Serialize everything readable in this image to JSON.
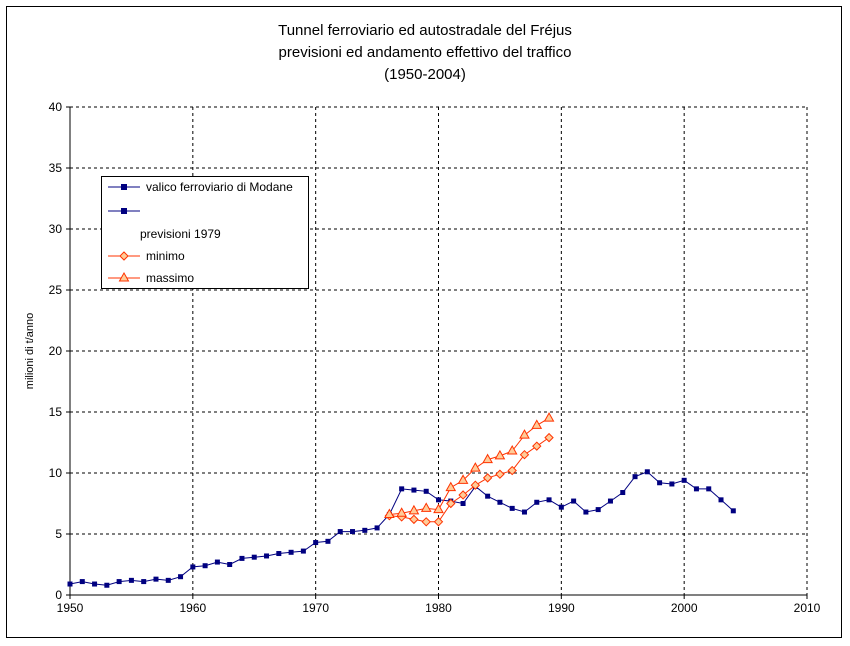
{
  "chart_data": {
    "type": "line",
    "title": [
      "Tunnel ferroviario ed autostradale del Fréjus",
      "previsioni ed andamento effettivo del traffico",
      "(1950-2004)"
    ],
    "ylabel": "milioni di t/anno",
    "xlabel": "",
    "xlim": [
      1950,
      2010
    ],
    "ylim": [
      0,
      40
    ],
    "x_ticks": [
      "1950",
      "1960",
      "1970",
      "1980",
      "1990",
      "2000",
      "2010"
    ],
    "y_ticks": [
      "0",
      "5",
      "10",
      "15",
      "20",
      "25",
      "30",
      "35",
      "40"
    ],
    "grid": true,
    "legend_position": "upper-left",
    "series": [
      {
        "name": "valico ferroviario di Modane",
        "color": "#000080",
        "marker": "square",
        "points": [
          [
            1950,
            0.9
          ],
          [
            1951,
            1.1
          ],
          [
            1952,
            0.9
          ],
          [
            1953,
            0.8
          ],
          [
            1954,
            1.1
          ],
          [
            1955,
            1.2
          ],
          [
            1956,
            1.1
          ],
          [
            1957,
            1.3
          ],
          [
            1958,
            1.2
          ],
          [
            1959,
            1.5
          ],
          [
            1960,
            2.3
          ],
          [
            1961,
            2.4
          ],
          [
            1962,
            2.7
          ],
          [
            1963,
            2.5
          ],
          [
            1964,
            3.0
          ],
          [
            1965,
            3.1
          ],
          [
            1966,
            3.2
          ],
          [
            1967,
            3.4
          ],
          [
            1968,
            3.5
          ],
          [
            1969,
            3.6
          ],
          [
            1970,
            4.3
          ],
          [
            1971,
            4.4
          ],
          [
            1972,
            5.2
          ],
          [
            1973,
            5.2
          ],
          [
            1974,
            5.3
          ],
          [
            1975,
            5.5
          ],
          [
            1976,
            6.6
          ],
          [
            1977,
            8.7
          ],
          [
            1978,
            8.6
          ],
          [
            1979,
            8.5
          ],
          [
            1980,
            7.8
          ],
          [
            1981,
            7.7
          ],
          [
            1982,
            7.5
          ],
          [
            1983,
            8.9
          ],
          [
            1984,
            8.1
          ],
          [
            1985,
            7.6
          ],
          [
            1986,
            7.1
          ],
          [
            1987,
            6.8
          ],
          [
            1988,
            7.6
          ],
          [
            1989,
            7.8
          ],
          [
            1990,
            7.2
          ],
          [
            1991,
            7.7
          ],
          [
            1992,
            6.8
          ],
          [
            1993,
            7.0
          ],
          [
            1994,
            7.7
          ],
          [
            1995,
            8.4
          ],
          [
            1996,
            9.7
          ],
          [
            1997,
            10.1
          ],
          [
            1998,
            9.2
          ],
          [
            1999,
            9.1
          ],
          [
            2000,
            9.4
          ],
          [
            2001,
            8.7
          ],
          [
            2002,
            8.7
          ],
          [
            2003,
            7.8
          ],
          [
            2004,
            6.9
          ]
        ]
      },
      {
        "name": "",
        "color": "#000080",
        "marker": "square",
        "points": []
      },
      {
        "name": "minimo",
        "color": "#ff3300",
        "marker": "diamond",
        "points": [
          [
            1976,
            6.5
          ],
          [
            1977,
            6.4
          ],
          [
            1978,
            6.2
          ],
          [
            1979,
            6.0
          ],
          [
            1980,
            6.0
          ],
          [
            1981,
            7.5
          ],
          [
            1982,
            8.2
          ],
          [
            1983,
            9.0
          ],
          [
            1984,
            9.6
          ],
          [
            1985,
            9.9
          ],
          [
            1986,
            10.2
          ],
          [
            1987,
            11.5
          ],
          [
            1988,
            12.2
          ],
          [
            1989,
            12.9
          ]
        ]
      },
      {
        "name": "massimo",
        "color": "#ff3300",
        "marker": "triangle",
        "points": [
          [
            1976,
            6.6
          ],
          [
            1977,
            6.7
          ],
          [
            1978,
            6.9
          ],
          [
            1979,
            7.1
          ],
          [
            1980,
            7.0
          ],
          [
            1981,
            8.8
          ],
          [
            1982,
            9.4
          ],
          [
            1983,
            10.4
          ],
          [
            1984,
            11.1
          ],
          [
            1985,
            11.4
          ],
          [
            1986,
            11.8
          ],
          [
            1987,
            13.1
          ],
          [
            1988,
            13.9
          ],
          [
            1989,
            14.5
          ]
        ]
      }
    ],
    "legend_extra_label": "previsioni 1979"
  }
}
